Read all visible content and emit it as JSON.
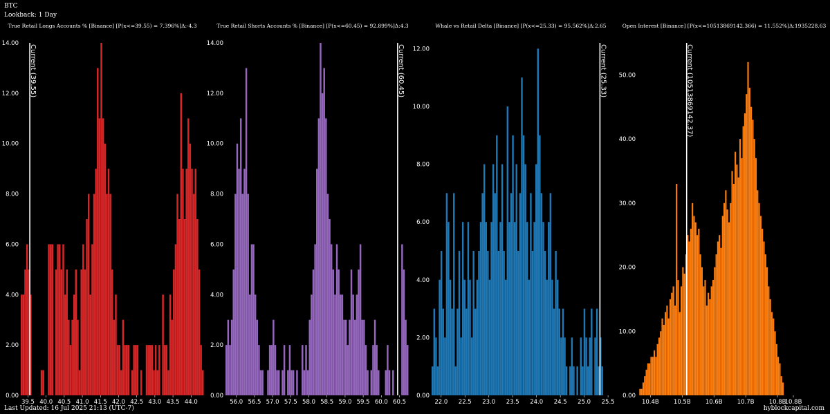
{
  "header": {
    "asset": "BTC",
    "lookback": "Lookback: 1 Day"
  },
  "footer": {
    "updated": "Last Updated: 16 Jul 2025 21:13 (UTC-7)",
    "brand": "hyblockcapital.com"
  },
  "chart_data": [
    {
      "type": "bar",
      "title": "True Retail Longs Accounts % [Binance] [P(x<=39.55) = 7.396%]Δ:-4.3",
      "color": "#d62728",
      "bin_start": 39.3,
      "bin_width": 0.05,
      "xlim": [
        39.3,
        44.3
      ],
      "ylim": [
        0,
        14
      ],
      "xticks": [
        "39.5",
        "40.0",
        "40.5",
        "41.0",
        "41.5",
        "42.0",
        "42.5",
        "43.0",
        "43.5",
        "44.0"
      ],
      "yticks": [
        "0.00",
        "2.00",
        "4.00",
        "6.00",
        "8.00",
        "10.00",
        "12.00",
        "14.00"
      ],
      "current": {
        "value": 39.55,
        "label": "Current (39.55)"
      },
      "values": [
        4,
        4,
        5,
        6,
        5,
        4,
        0,
        0,
        0,
        0,
        0,
        1,
        1,
        0,
        0,
        6,
        6,
        6,
        0,
        5,
        6,
        6,
        5,
        6,
        4,
        5,
        3,
        2,
        3,
        4,
        5,
        3,
        1,
        5,
        6,
        5,
        7,
        8,
        4,
        6,
        8,
        9,
        13,
        11,
        14,
        11,
        10,
        8,
        9,
        8,
        5,
        3,
        4,
        2,
        2,
        1,
        3,
        2,
        2,
        2,
        0,
        1,
        2,
        2,
        2,
        0,
        1,
        0,
        0,
        2,
        2,
        2,
        2,
        1,
        2,
        1,
        2,
        0,
        4,
        2,
        2,
        1,
        4,
        3,
        5,
        6,
        8,
        7,
        12,
        9,
        7,
        9,
        11,
        10,
        9,
        8,
        9,
        7,
        5,
        2,
        1
      ]
    },
    {
      "type": "bar",
      "title": "True Retail Shorts Accounts % [Binance] [P(x<=60.45) = 92.899%]Δ:4.3",
      "color": "#9467bd",
      "bin_start": 55.7,
      "bin_width": 0.05,
      "xlim": [
        55.7,
        60.7
      ],
      "ylim": [
        0,
        14
      ],
      "xticks": [
        "56.0",
        "56.5",
        "57.0",
        "57.5",
        "58.0",
        "58.5",
        "59.0",
        "59.5",
        "60.0",
        "60.5"
      ],
      "yticks": [
        "0.00",
        "2.00",
        "4.00",
        "6.00",
        "8.00",
        "10.00",
        "12.00",
        "14.00"
      ],
      "current": {
        "value": 60.45,
        "label": "Current (60.45)"
      },
      "values": [
        2,
        3,
        2,
        3,
        5,
        8,
        10,
        9,
        11,
        8,
        9,
        13,
        8,
        4,
        6,
        6,
        4,
        3,
        2,
        1,
        1,
        0,
        0,
        1,
        2,
        2,
        3,
        2,
        1,
        1,
        0,
        1,
        2,
        0,
        1,
        2,
        1,
        1,
        0,
        1,
        0,
        0,
        2,
        1,
        2,
        1,
        3,
        4,
        5,
        6,
        9,
        11,
        14,
        12,
        13,
        11,
        8,
        7,
        6,
        5,
        4,
        6,
        5,
        4,
        4,
        3,
        3,
        2,
        3,
        5,
        4,
        3,
        4,
        5,
        6,
        3,
        3,
        2,
        1,
        0,
        1,
        2,
        3,
        2,
        1,
        0,
        0,
        0,
        1,
        2,
        1,
        0,
        1,
        0,
        0,
        0,
        0,
        6,
        5,
        3,
        2
      ]
    },
    {
      "type": "bar",
      "title": "Whale vs Retail Delta [Binance] [P(x<=25.33) = 95.562%]Δ:2.65",
      "color": "#1f77b4",
      "bin_start": 21.8,
      "bin_width": 0.0375,
      "xlim": [
        21.8,
        25.6
      ],
      "ylim": [
        0,
        12.2
      ],
      "xticks": [
        "22.0",
        "22.5",
        "23.0",
        "23.5",
        "24.0",
        "24.5",
        "25.0",
        "25.5"
      ],
      "yticks": [
        "0.00",
        "2.00",
        "4.00",
        "6.00",
        "8.00",
        "10.00",
        "12.00"
      ],
      "current": {
        "value": 25.33,
        "label": "Current (25.33)"
      },
      "values": [
        1,
        3,
        2,
        1,
        4,
        5,
        3,
        2,
        7,
        6,
        4,
        3,
        7,
        1,
        3,
        5,
        2,
        6,
        4,
        3,
        6,
        4,
        2,
        5,
        3,
        4,
        5,
        6,
        7,
        8,
        6,
        5,
        4,
        6,
        8,
        7,
        9,
        5,
        6,
        8,
        5,
        4,
        10,
        6,
        7,
        9,
        6,
        8,
        5,
        7,
        11,
        9,
        8,
        6,
        4,
        7,
        5,
        6,
        8,
        12,
        9,
        7,
        6,
        5,
        4,
        6,
        7,
        4,
        3,
        5,
        4,
        3,
        2,
        3,
        2,
        1,
        0,
        1,
        2,
        1,
        0,
        1,
        0,
        2,
        1,
        3,
        2,
        1,
        2,
        3,
        0,
        2,
        3,
        1,
        2,
        1,
        0
      ]
    },
    {
      "type": "bar",
      "title": "Open Interest [Binance] [P(x<=10513869142.366) = 11.552%]Δ:1935228.63",
      "color": "#ff7f0e",
      "bin_start": 10.36,
      "bin_width": 0.005,
      "xlim": [
        10.36,
        10.9
      ],
      "ylim": [
        0,
        55
      ],
      "xticks": [
        "10.4B",
        "10.5B",
        "10.6B",
        "10.7B",
        "10.8B",
        "10.8B"
      ],
      "xtick_values": [
        10.4,
        10.5,
        10.6,
        10.7,
        10.8,
        10.85
      ],
      "yticks": [
        "0.00",
        "10.00",
        "20.00",
        "30.00",
        "40.00",
        "50.00"
      ],
      "current": {
        "value": 10.514,
        "label": "Current (10513869142.37)"
      },
      "values": [
        0,
        1,
        1,
        2,
        3,
        4,
        5,
        5,
        6,
        6,
        7,
        6,
        8,
        9,
        10,
        12,
        11,
        13,
        14,
        12,
        15,
        16,
        17,
        14,
        33,
        18,
        13,
        17,
        20,
        19,
        22,
        25,
        24,
        26,
        30,
        28,
        27,
        25,
        26,
        22,
        20,
        17,
        18,
        14,
        16,
        15,
        17,
        18,
        20,
        22,
        24,
        25,
        23,
        28,
        30,
        32,
        29,
        27,
        30,
        35,
        33,
        38,
        36,
        34,
        40,
        37,
        42,
        44,
        47,
        52,
        48,
        45,
        43,
        40,
        37,
        32,
        30,
        28,
        26,
        24,
        22,
        20,
        17,
        15,
        13,
        12,
        10,
        8,
        6,
        5,
        3,
        2
      ]
    }
  ]
}
